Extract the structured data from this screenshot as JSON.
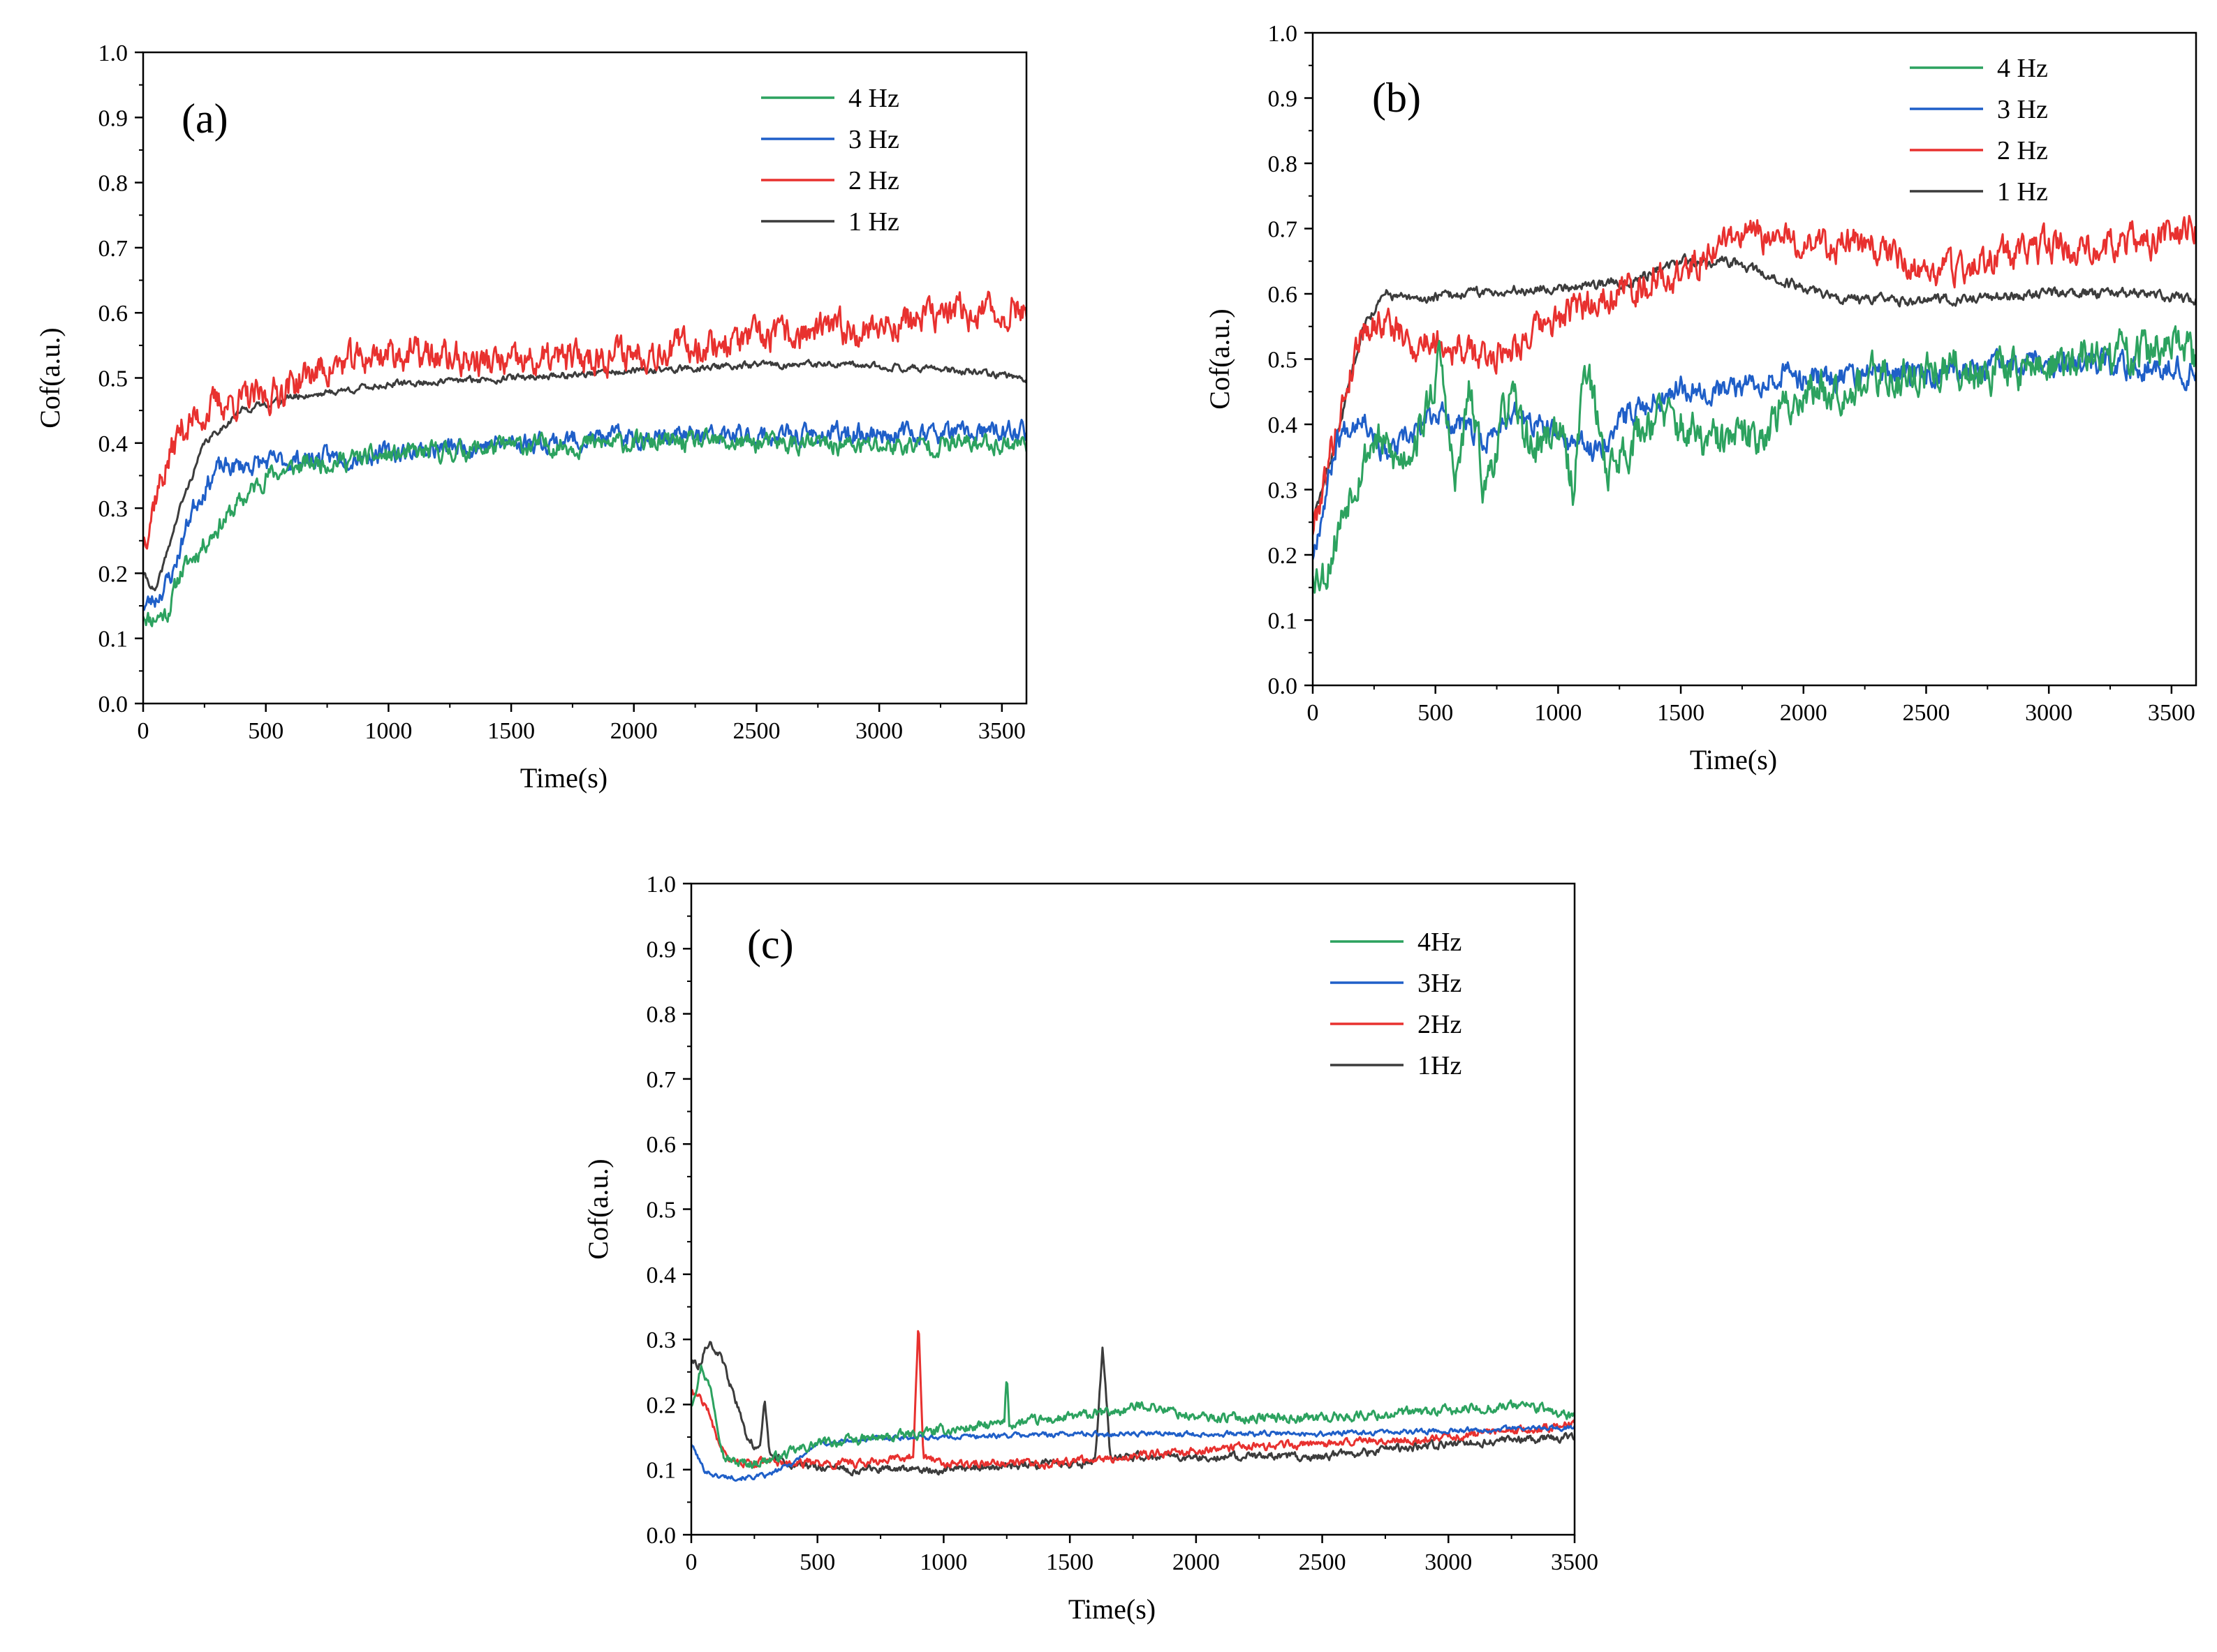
{
  "chart_data": [
    {
      "type": "line",
      "panel_label": "(a)",
      "xlabel": "Time(s)",
      "ylabel": "Cof(a.u.)",
      "xlim": [
        0,
        3600
      ],
      "ylim": [
        0,
        1.0
      ],
      "xticks": [
        0,
        500,
        1000,
        1500,
        2000,
        2500,
        3000,
        3500
      ],
      "xtick_labels": [
        "0",
        "500",
        "1000",
        "1500",
        "2000",
        "2500",
        "3000",
        "3500"
      ],
      "yticks": [
        0,
        0.1,
        0.2,
        0.3,
        0.4,
        0.5,
        0.6,
        0.7,
        0.8,
        0.9,
        1.0
      ],
      "ytick_labels": [
        "0.0",
        "0.1",
        "0.2",
        "0.3",
        "0.4",
        "0.5",
        "0.6",
        "0.7",
        "0.8",
        "0.9",
        "1.0"
      ],
      "legend_position": "top-right",
      "series": [
        {
          "name": "4 Hz",
          "color": "#2ca25f",
          "noise": 0.012,
          "seed": 11,
          "x": [
            0,
            30,
            100,
            150,
            300,
            500,
            700,
            1000,
            1500,
            2000,
            2500,
            3000,
            3500,
            3600
          ],
          "y": [
            0.14,
            0.13,
            0.14,
            0.2,
            0.27,
            0.35,
            0.37,
            0.38,
            0.395,
            0.4,
            0.4,
            0.395,
            0.4,
            0.4
          ]
        },
        {
          "name": "3 Hz",
          "color": "#1f5fc8",
          "noise": 0.012,
          "seed": 23,
          "x": [
            0,
            50,
            120,
            200,
            300,
            500,
            1000,
            1500,
            2000,
            2500,
            3000,
            3500,
            3600
          ],
          "y": [
            0.15,
            0.16,
            0.2,
            0.3,
            0.36,
            0.37,
            0.385,
            0.4,
            0.41,
            0.41,
            0.415,
            0.415,
            0.42
          ]
        },
        {
          "name": "2 Hz",
          "color": "#e8312f",
          "noise": 0.02,
          "seed": 37,
          "x": [
            0,
            50,
            150,
            300,
            500,
            700,
            1000,
            1500,
            2000,
            2500,
            3000,
            3300,
            3500,
            3600
          ],
          "y": [
            0.25,
            0.32,
            0.42,
            0.46,
            0.47,
            0.51,
            0.54,
            0.52,
            0.54,
            0.56,
            0.58,
            0.6,
            0.6,
            0.61
          ]
        },
        {
          "name": "1 Hz",
          "color": "#3c3c3c",
          "noise": 0.004,
          "seed": 41,
          "x": [
            0,
            50,
            150,
            250,
            400,
            600,
            1000,
            1500,
            2000,
            2500,
            2800,
            3200,
            3600
          ],
          "y": [
            0.2,
            0.17,
            0.3,
            0.4,
            0.45,
            0.47,
            0.49,
            0.5,
            0.51,
            0.52,
            0.52,
            0.515,
            0.5
          ]
        }
      ]
    },
    {
      "type": "line",
      "panel_label": "(b)",
      "xlabel": "Time(s)",
      "ylabel": "Cof(a.u.)",
      "xlim": [
        0,
        3600
      ],
      "ylim": [
        0,
        1.0
      ],
      "xticks": [
        0,
        500,
        1000,
        1500,
        2000,
        2500,
        3000,
        3500
      ],
      "xtick_labels": [
        "0",
        "500",
        "1000",
        "1500",
        "2000",
        "2500",
        "3000",
        "3500"
      ],
      "yticks": [
        0,
        0.1,
        0.2,
        0.3,
        0.4,
        0.5,
        0.6,
        0.7,
        0.8,
        0.9,
        1.0
      ],
      "ytick_labels": [
        "0.0",
        "0.1",
        "0.2",
        "0.3",
        "0.4",
        "0.5",
        "0.6",
        "0.7",
        "0.8",
        "0.9",
        "1.0"
      ],
      "legend_position": "top-right",
      "series": [
        {
          "name": "4 Hz",
          "color": "#2ca25f",
          "noise": 0.025,
          "seed": 53,
          "x": [
            0,
            50,
            150,
            250,
            350,
            450,
            520,
            580,
            640,
            700,
            800,
            900,
            1000,
            1060,
            1110,
            1200,
            1400,
            1600,
            1800,
            2000,
            2500,
            3000,
            3500,
            3600
          ],
          "y": [
            0.18,
            0.17,
            0.3,
            0.38,
            0.34,
            0.4,
            0.5,
            0.3,
            0.45,
            0.3,
            0.44,
            0.36,
            0.4,
            0.3,
            0.5,
            0.33,
            0.42,
            0.37,
            0.38,
            0.45,
            0.48,
            0.49,
            0.52,
            0.5
          ]
        },
        {
          "name": "3 Hz",
          "color": "#1f5fc8",
          "noise": 0.015,
          "seed": 67,
          "x": [
            0,
            100,
            200,
            300,
            400,
            500,
            600,
            700,
            800,
            1000,
            1150,
            1300,
            1500,
            1700,
            1900,
            2000,
            2500,
            3000,
            3500,
            3600
          ],
          "y": [
            0.2,
            0.38,
            0.42,
            0.35,
            0.38,
            0.42,
            0.4,
            0.37,
            0.42,
            0.38,
            0.36,
            0.42,
            0.46,
            0.45,
            0.48,
            0.47,
            0.48,
            0.49,
            0.49,
            0.48
          ]
        },
        {
          "name": "2 Hz",
          "color": "#e8312f",
          "noise": 0.02,
          "seed": 79,
          "x": [
            0,
            100,
            200,
            300,
            400,
            500,
            700,
            1000,
            1200,
            1500,
            1700,
            2000,
            2300,
            2500,
            3000,
            3400,
            3600
          ],
          "y": [
            0.24,
            0.4,
            0.55,
            0.56,
            0.52,
            0.53,
            0.5,
            0.56,
            0.6,
            0.63,
            0.69,
            0.68,
            0.67,
            0.63,
            0.67,
            0.68,
            0.7
          ]
        },
        {
          "name": "1 Hz",
          "color": "#3c3c3c",
          "noise": 0.006,
          "seed": 83,
          "x": [
            0,
            100,
            200,
            300,
            400,
            600,
            1000,
            1300,
            1500,
            1700,
            1900,
            2200,
            2500,
            3000,
            3400,
            3600
          ],
          "y": [
            0.25,
            0.38,
            0.55,
            0.6,
            0.59,
            0.6,
            0.61,
            0.62,
            0.65,
            0.65,
            0.62,
            0.59,
            0.59,
            0.6,
            0.6,
            0.59
          ]
        }
      ]
    },
    {
      "type": "line",
      "panel_label": "(c)",
      "xlabel": "Time(s)",
      "ylabel": "Cof(a.u.)",
      "xlim": [
        0,
        3500
      ],
      "ylim": [
        0,
        1.0
      ],
      "xticks": [
        0,
        500,
        1000,
        1500,
        2000,
        2500,
        3000,
        3500
      ],
      "xtick_labels": [
        "0",
        "500",
        "1000",
        "1500",
        "2000",
        "2500",
        "3000",
        "3500"
      ],
      "yticks": [
        0,
        0.1,
        0.2,
        0.3,
        0.4,
        0.5,
        0.6,
        0.7,
        0.8,
        0.9,
        1.0
      ],
      "ytick_labels": [
        "0.0",
        "0.1",
        "0.2",
        "0.3",
        "0.4",
        "0.5",
        "0.6",
        "0.7",
        "0.8",
        "0.9",
        "1.0"
      ],
      "legend_position": "top-right",
      "series": [
        {
          "name": "4Hz",
          "color": "#2ca25f",
          "noise": 0.006,
          "seed": 97,
          "x": [
            0,
            40,
            80,
            130,
            180,
            250,
            350,
            500,
            800,
            1000,
            1240,
            1250,
            1260,
            1500,
            1700,
            1800,
            2000,
            2500,
            3000,
            3300,
            3500
          ],
          "y": [
            0.2,
            0.26,
            0.22,
            0.12,
            0.11,
            0.11,
            0.12,
            0.14,
            0.15,
            0.16,
            0.17,
            0.25,
            0.17,
            0.18,
            0.19,
            0.2,
            0.18,
            0.18,
            0.19,
            0.2,
            0.18
          ]
        },
        {
          "name": "3Hz",
          "color": "#1f5fc8",
          "noise": 0.003,
          "seed": 101,
          "x": [
            0,
            50,
            100,
            200,
            300,
            400,
            500,
            800,
            1000,
            1500,
            2000,
            2500,
            3000,
            3500
          ],
          "y": [
            0.14,
            0.1,
            0.09,
            0.088,
            0.09,
            0.11,
            0.14,
            0.15,
            0.15,
            0.155,
            0.155,
            0.155,
            0.16,
            0.165
          ]
        },
        {
          "name": "2Hz",
          "color": "#e8312f",
          "noise": 0.005,
          "seed": 107,
          "x": [
            0,
            60,
            100,
            150,
            200,
            300,
            500,
            700,
            880,
            900,
            920,
            1000,
            1500,
            2000,
            2500,
            3000,
            3500
          ],
          "y": [
            0.22,
            0.2,
            0.15,
            0.12,
            0.11,
            0.11,
            0.11,
            0.11,
            0.12,
            0.33,
            0.12,
            0.11,
            0.11,
            0.13,
            0.14,
            0.15,
            0.17
          ]
        },
        {
          "name": "1Hz",
          "color": "#3c3c3c",
          "noise": 0.005,
          "seed": 113,
          "x": [
            0,
            30,
            70,
            120,
            180,
            220,
            270,
            290,
            310,
            400,
            600,
            1000,
            1500,
            1600,
            1630,
            1660,
            2000,
            2500,
            3000,
            3500
          ],
          "y": [
            0.27,
            0.26,
            0.3,
            0.27,
            0.2,
            0.15,
            0.13,
            0.21,
            0.12,
            0.11,
            0.1,
            0.1,
            0.11,
            0.11,
            0.29,
            0.12,
            0.12,
            0.12,
            0.14,
            0.15
          ]
        }
      ]
    }
  ]
}
